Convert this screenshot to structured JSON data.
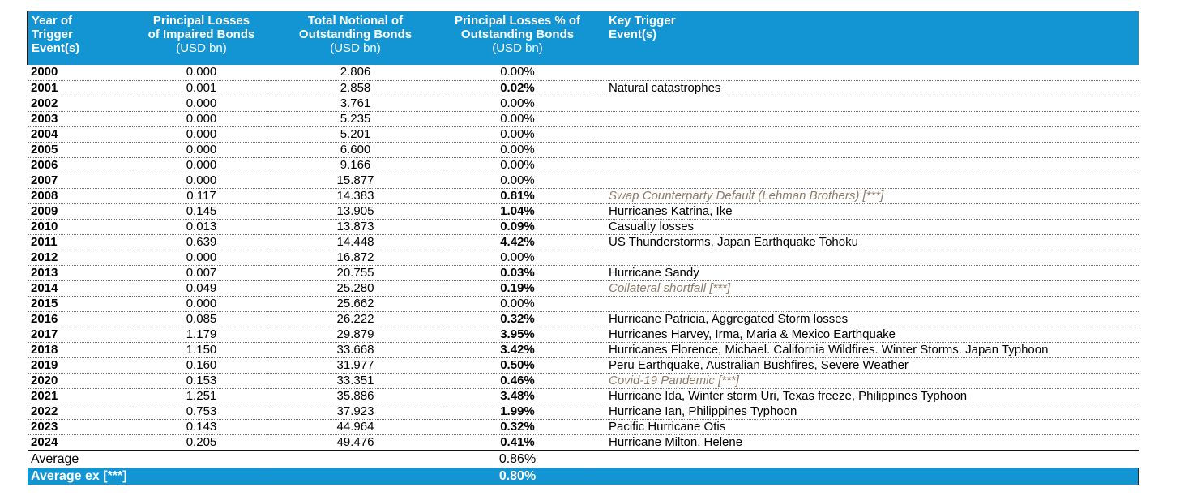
{
  "colors": {
    "header_blue": "#1395d3",
    "special_note_brown": "#8c7b6b",
    "header_text": "#ffffff"
  },
  "header": {
    "year": "Year of\nTrigger\nEvent(s)",
    "losses": "Principal Losses\nof Impaired Bonds",
    "losses_unit": "(USD bn)",
    "notional": "Total Notional of\nOutstanding Bonds",
    "notional_unit": "(USD bn)",
    "pct": "Principal Losses % of\nOutstanding Bonds",
    "pct_unit": "(USD bn)",
    "trigger": "Key Trigger\nEvent(s)"
  },
  "average_row": {
    "label": "Average",
    "pct": "0.86%"
  },
  "average_ex_row": {
    "label": "Average ex [***]",
    "pct": "0.80%"
  },
  "chart_data": {
    "type": "table",
    "title": "Catastrophe bond principal losses vs. outstanding notional by year of trigger event",
    "columns": [
      "Year of Trigger Event(s)",
      "Principal Losses of Impaired Bonds (USD bn)",
      "Total Notional of Outstanding Bonds (USD bn)",
      "Principal Losses % of Outstanding Bonds (USD bn)",
      "Key Trigger Event(s)"
    ],
    "rows": [
      {
        "year": "2000",
        "losses": "0.000",
        "notional": "2.806",
        "pct": "0.00%",
        "pct_bold": false,
        "trigger": "",
        "special": false
      },
      {
        "year": "2001",
        "losses": "0.001",
        "notional": "2.858",
        "pct": "0.02%",
        "pct_bold": true,
        "trigger": "Natural catastrophes",
        "special": false
      },
      {
        "year": "2002",
        "losses": "0.000",
        "notional": "3.761",
        "pct": "0.00%",
        "pct_bold": false,
        "trigger": "",
        "special": false
      },
      {
        "year": "2003",
        "losses": "0.000",
        "notional": "5.235",
        "pct": "0.00%",
        "pct_bold": false,
        "trigger": "",
        "special": false
      },
      {
        "year": "2004",
        "losses": "0.000",
        "notional": "5.201",
        "pct": "0.00%",
        "pct_bold": false,
        "trigger": "",
        "special": false
      },
      {
        "year": "2005",
        "losses": "0.000",
        "notional": "6.600",
        "pct": "0.00%",
        "pct_bold": false,
        "trigger": "",
        "special": false
      },
      {
        "year": "2006",
        "losses": "0.000",
        "notional": "9.166",
        "pct": "0.00%",
        "pct_bold": false,
        "trigger": "",
        "special": false
      },
      {
        "year": "2007",
        "losses": "0.000",
        "notional": "15.877",
        "pct": "0.00%",
        "pct_bold": false,
        "trigger": "",
        "special": false
      },
      {
        "year": "2008",
        "losses": "0.117",
        "notional": "14.383",
        "pct": "0.81%",
        "pct_bold": true,
        "trigger": "Swap Counterparty Default (Lehman Brothers) [***]",
        "special": true
      },
      {
        "year": "2009",
        "losses": "0.145",
        "notional": "13.905",
        "pct": "1.04%",
        "pct_bold": true,
        "trigger": "Hurricanes Katrina, Ike",
        "special": false
      },
      {
        "year": "2010",
        "losses": "0.013",
        "notional": "13.873",
        "pct": "0.09%",
        "pct_bold": true,
        "trigger": "Casualty losses",
        "special": false
      },
      {
        "year": "2011",
        "losses": "0.639",
        "notional": "14.448",
        "pct": "4.42%",
        "pct_bold": true,
        "trigger": "US Thunderstorms, Japan Earthquake Tohoku",
        "special": false
      },
      {
        "year": "2012",
        "losses": "0.000",
        "notional": "16.872",
        "pct": "0.00%",
        "pct_bold": false,
        "trigger": "",
        "special": false
      },
      {
        "year": "2013",
        "losses": "0.007",
        "notional": "20.755",
        "pct": "0.03%",
        "pct_bold": true,
        "trigger": "Hurricane Sandy",
        "special": false
      },
      {
        "year": "2014",
        "losses": "0.049",
        "notional": "25.280",
        "pct": "0.19%",
        "pct_bold": true,
        "trigger": "Collateral shortfall [***]",
        "special": true
      },
      {
        "year": "2015",
        "losses": "0.000",
        "notional": "25.662",
        "pct": "0.00%",
        "pct_bold": false,
        "trigger": "",
        "special": false
      },
      {
        "year": "2016",
        "losses": "0.085",
        "notional": "26.222",
        "pct": "0.32%",
        "pct_bold": true,
        "trigger": "Hurricane Patricia, Aggregated Storm losses",
        "special": false
      },
      {
        "year": "2017",
        "losses": "1.179",
        "notional": "29.879",
        "pct": "3.95%",
        "pct_bold": true,
        "trigger": "Hurricanes Harvey, Irma, Maria & Mexico Earthquake",
        "special": false
      },
      {
        "year": "2018",
        "losses": "1.150",
        "notional": "33.668",
        "pct": "3.42%",
        "pct_bold": true,
        "trigger": "Hurricanes Florence, Michael. California Wildfires. Winter Storms. Japan Typhoon",
        "special": false
      },
      {
        "year": "2019",
        "losses": "0.160",
        "notional": "31.977",
        "pct": "0.50%",
        "pct_bold": true,
        "trigger": "Peru Earthquake, Australian Bushfires, Severe Weather",
        "special": false
      },
      {
        "year": "2020",
        "losses": "0.153",
        "notional": "33.351",
        "pct": "0.46%",
        "pct_bold": true,
        "trigger": "Covid-19 Pandemic [***]",
        "special": true
      },
      {
        "year": "2021",
        "losses": "1.251",
        "notional": "35.886",
        "pct": "3.48%",
        "pct_bold": true,
        "trigger": "Hurricane Ida, Winter storm Uri, Texas freeze, Philippines Typhoon",
        "special": false
      },
      {
        "year": "2022",
        "losses": "0.753",
        "notional": "37.923",
        "pct": "1.99%",
        "pct_bold": true,
        "trigger": "Hurricane Ian, Philippines Typhoon",
        "special": false
      },
      {
        "year": "2023",
        "losses": "0.143",
        "notional": "44.964",
        "pct": "0.32%",
        "pct_bold": true,
        "trigger": "Pacific Hurricane Otis",
        "special": false
      },
      {
        "year": "2024",
        "losses": "0.205",
        "notional": "49.476",
        "pct": "0.41%",
        "pct_bold": true,
        "trigger": "Hurricane Milton, Helene",
        "special": false
      }
    ],
    "summary": {
      "average_pct": "0.86%",
      "average_ex_pct": "0.80%"
    },
    "layout": {
      "grid": "dotted row separators",
      "legend": "none"
    }
  }
}
